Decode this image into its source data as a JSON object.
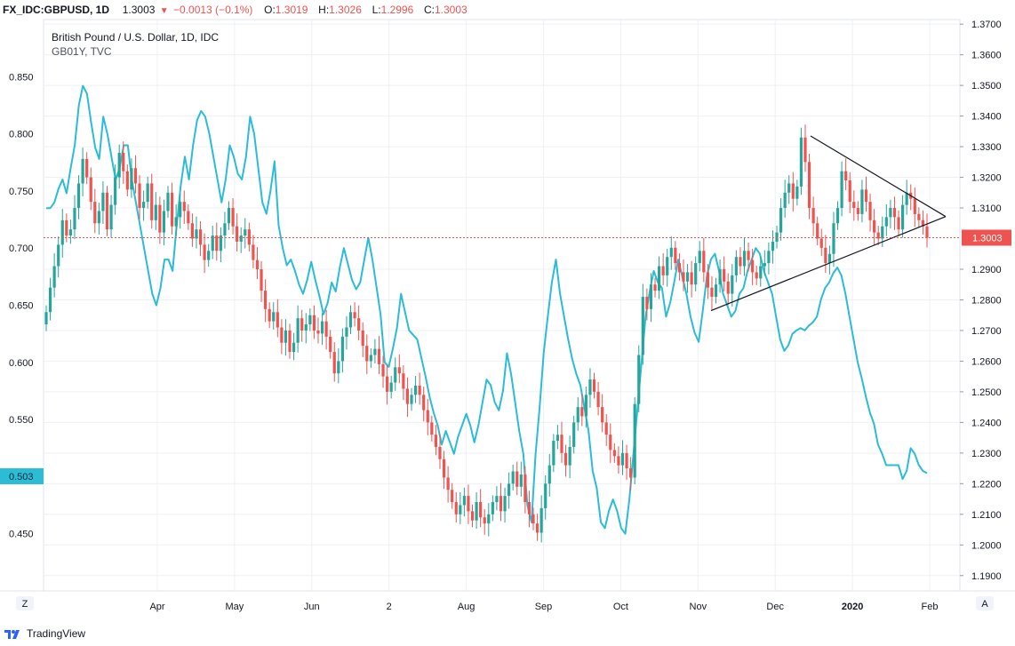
{
  "header": {
    "symbol": "FX_IDC:GBPUSD, 1D",
    "last": "1.3003",
    "change": "−0.0013 (−0.1%)",
    "o_label": "O:",
    "o_value": "1.3019",
    "h_label": "H:",
    "h_value": "1.3026",
    "l_label": "L:",
    "l_value": "1.2996",
    "c_label": "C:",
    "c_value": "1.3003"
  },
  "legend": {
    "title": "British Pound / U.S. Dollar, 1D, IDC",
    "overlay": "GB01Y, TVC"
  },
  "corner_left": "Z",
  "corner_right": "A",
  "branding": "TradingView",
  "colors": {
    "up": "#26a69a",
    "down": "#ef5350",
    "overlay": "#2bbcd6",
    "grid": "#eef0f3",
    "price_line": "#ef5350"
  },
  "chart_data": {
    "type": "candlestick-with-line-overlay",
    "right_axis": {
      "ticks": [
        "1.3700",
        "1.3600",
        "1.3500",
        "1.3400",
        "1.3300",
        "1.3200",
        "1.3100",
        "1.2900",
        "1.2800",
        "1.2700",
        "1.2600",
        "1.2500",
        "1.2400",
        "1.2300",
        "1.2200",
        "1.2100",
        "1.2000",
        "1.1900"
      ],
      "range": [
        1.185,
        1.3715
      ],
      "current_label": "1.3003",
      "current_value": 1.3003
    },
    "left_axis": {
      "ticks": [
        "0.850",
        "0.800",
        "0.750",
        "0.700",
        "0.650",
        "0.600",
        "0.550",
        "0.450"
      ],
      "range": [
        0.4,
        0.9
      ],
      "current_label": "0.503",
      "current_value": 0.503
    },
    "x_axis": {
      "ticks": [
        "Apr",
        "May",
        "Jun",
        "2",
        "Aug",
        "Sep",
        "Oct",
        "Nov",
        "Dec",
        "2020",
        "Feb"
      ]
    },
    "gbpusd_close": [
      1.276,
      1.284,
      1.291,
      1.298,
      1.306,
      1.301,
      1.303,
      1.31,
      1.318,
      1.326,
      1.32,
      1.312,
      1.305,
      1.309,
      1.315,
      1.303,
      1.311,
      1.32,
      1.328,
      1.322,
      1.316,
      1.323,
      1.318,
      1.31,
      1.312,
      1.318,
      1.306,
      1.311,
      1.302,
      1.309,
      1.315,
      1.304,
      1.307,
      1.312,
      1.309,
      1.305,
      1.3,
      1.303,
      1.298,
      1.293,
      1.296,
      1.301,
      1.296,
      1.301,
      1.305,
      1.31,
      1.304,
      1.299,
      1.301,
      1.303,
      1.298,
      1.293,
      1.29,
      1.283,
      1.277,
      1.273,
      1.276,
      1.271,
      1.266,
      1.27,
      1.263,
      1.266,
      1.274,
      1.27,
      1.272,
      1.275,
      1.27,
      1.269,
      1.273,
      1.268,
      1.263,
      1.256,
      1.26,
      1.268,
      1.271,
      1.276,
      1.274,
      1.27,
      1.265,
      1.26,
      1.262,
      1.264,
      1.259,
      1.255,
      1.25,
      1.253,
      1.258,
      1.256,
      1.251,
      1.246,
      1.249,
      1.252,
      1.249,
      1.244,
      1.24,
      1.236,
      1.232,
      1.228,
      1.222,
      1.218,
      1.214,
      1.21,
      1.213,
      1.216,
      1.211,
      1.208,
      1.214,
      1.209,
      1.207,
      1.21,
      1.214,
      1.216,
      1.211,
      1.216,
      1.22,
      1.224,
      1.219,
      1.223,
      1.214,
      1.21,
      1.207,
      1.204,
      1.212,
      1.22,
      1.226,
      1.234,
      1.236,
      1.23,
      1.226,
      1.232,
      1.24,
      1.245,
      1.242,
      1.249,
      1.254,
      1.25,
      1.245,
      1.24,
      1.236,
      1.231,
      1.229,
      1.226,
      1.23,
      1.225,
      1.222,
      1.246,
      1.262,
      1.281,
      1.277,
      1.285,
      1.283,
      1.291,
      1.288,
      1.294,
      1.297,
      1.292,
      1.289,
      1.286,
      1.289,
      1.285,
      1.292,
      1.296,
      1.289,
      1.284,
      1.281,
      1.285,
      1.29,
      1.286,
      1.282,
      1.288,
      1.294,
      1.291,
      1.296,
      1.293,
      1.289,
      1.287,
      1.291,
      1.292,
      1.296,
      1.299,
      1.302,
      1.31,
      1.315,
      1.318,
      1.313,
      1.317,
      1.333,
      1.325,
      1.31,
      1.305,
      1.3,
      1.297,
      1.292,
      1.295,
      1.305,
      1.31,
      1.322,
      1.319,
      1.312,
      1.31,
      1.308,
      1.316,
      1.312,
      1.306,
      1.302,
      1.3,
      1.304,
      1.307,
      1.31,
      1.307,
      1.303,
      1.311,
      1.315,
      1.313,
      1.308,
      1.306,
      1.304,
      1.3003
    ],
    "gb01y": [
      0.735,
      0.735,
      0.74,
      0.752,
      0.76,
      0.748,
      0.77,
      0.79,
      0.825,
      0.842,
      0.835,
      0.81,
      0.788,
      0.778,
      0.815,
      0.8,
      0.78,
      0.76,
      0.77,
      0.79,
      0.79,
      0.76,
      0.74,
      0.72,
      0.7,
      0.68,
      0.66,
      0.65,
      0.665,
      0.69,
      0.69,
      0.68,
      0.72,
      0.755,
      0.78,
      0.76,
      0.79,
      0.812,
      0.82,
      0.815,
      0.8,
      0.78,
      0.76,
      0.74,
      0.76,
      0.79,
      0.78,
      0.765,
      0.76,
      0.78,
      0.815,
      0.8,
      0.77,
      0.74,
      0.73,
      0.75,
      0.776,
      0.72,
      0.7,
      0.685,
      0.69,
      0.68,
      0.668,
      0.66,
      0.672,
      0.688,
      0.672,
      0.658,
      0.642,
      0.652,
      0.67,
      0.662,
      0.683,
      0.7,
      0.686,
      0.672,
      0.664,
      0.67,
      0.69,
      0.709,
      0.69,
      0.666,
      0.642,
      0.6,
      0.596,
      0.612,
      0.63,
      0.66,
      0.644,
      0.628,
      0.624,
      0.62,
      0.604,
      0.588,
      0.57,
      0.556,
      0.545,
      0.528,
      0.54,
      0.53,
      0.52,
      0.535,
      0.545,
      0.555,
      0.545,
      0.53,
      0.545,
      0.565,
      0.585,
      0.58,
      0.565,
      0.558,
      0.575,
      0.608,
      0.59,
      0.565,
      0.54,
      0.52,
      0.475,
      0.46,
      0.52,
      0.56,
      0.608,
      0.64,
      0.67,
      0.69,
      0.66,
      0.64,
      0.62,
      0.603,
      0.59,
      0.58,
      0.56,
      0.54,
      0.505,
      0.49,
      0.46,
      0.455,
      0.47,
      0.48,
      0.47,
      0.455,
      0.45,
      0.48,
      0.52,
      0.56,
      0.6,
      0.64,
      0.662,
      0.68,
      0.67,
      0.665,
      0.64,
      0.652,
      0.67,
      0.69,
      0.675,
      0.66,
      0.64,
      0.626,
      0.618,
      0.645,
      0.675,
      0.69,
      0.695,
      0.68,
      0.66,
      0.65,
      0.64,
      0.645,
      0.66,
      0.665,
      0.68,
      0.69,
      0.7,
      0.695,
      0.68,
      0.67,
      0.66,
      0.64,
      0.62,
      0.61,
      0.615,
      0.625,
      0.628,
      0.63,
      0.628,
      0.632,
      0.635,
      0.64,
      0.655,
      0.665,
      0.67,
      0.678,
      0.683,
      0.676,
      0.66,
      0.64,
      0.62,
      0.6,
      0.586,
      0.57,
      0.556,
      0.546,
      0.528,
      0.52,
      0.51,
      0.51,
      0.51,
      0.51,
      0.498,
      0.505,
      0.525,
      0.52,
      0.51,
      0.505,
      0.503
    ],
    "triangle": {
      "upper": [
        [
          1.3335,
          0.0
        ],
        [
          1.3072,
          1.0
        ]
      ],
      "lower": [
        [
          1.2765,
          0.0
        ],
        [
          1.3072,
          1.0
        ]
      ]
    }
  }
}
